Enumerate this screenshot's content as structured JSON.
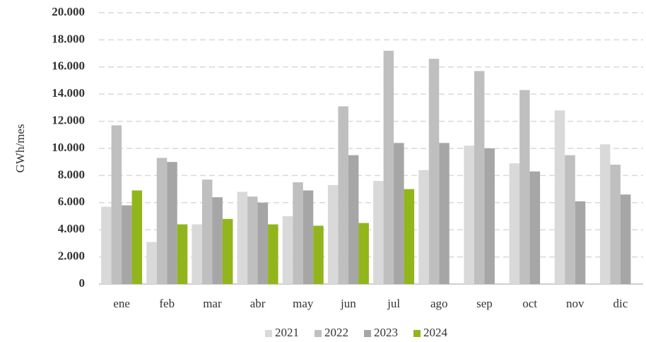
{
  "chart_data": {
    "type": "bar",
    "y_label": "GWh/mes",
    "categories": [
      "ene",
      "feb",
      "mar",
      "abr",
      "may",
      "jun",
      "jul",
      "ago",
      "sep",
      "oct",
      "nov",
      "dic"
    ],
    "series": [
      {
        "name": "2021",
        "color": "#d9d9d9",
        "values": [
          5700,
          3100,
          4400,
          6800,
          5000,
          7300,
          7600,
          8400,
          10200,
          8900,
          12800,
          10300
        ]
      },
      {
        "name": "2022",
        "color": "#bfbfbf",
        "values": [
          11700,
          9300,
          7700,
          6450,
          7500,
          13100,
          17200,
          16600,
          15700,
          14300,
          9500,
          8800
        ]
      },
      {
        "name": "2023",
        "color": "#a6a6a6",
        "values": [
          5800,
          9000,
          6400,
          6000,
          6900,
          9500,
          10400,
          10400,
          10000,
          8300,
          6100,
          6600
        ]
      },
      {
        "name": "2024",
        "color": "#92b51b",
        "values": [
          6900,
          4400,
          4800,
          4400,
          4300,
          4500,
          7000,
          null,
          null,
          null,
          null,
          null
        ]
      }
    ],
    "ylim": [
      0,
      20000
    ],
    "yticks": [
      0,
      {
        "value": 2000,
        "label": "2.000"
      },
      {
        "value": 4000,
        "label": "4.000"
      },
      {
        "value": 6000,
        "label": "6.000"
      },
      {
        "value": 8000,
        "label": "8.000"
      },
      {
        "value": 10000,
        "label": "10.000"
      },
      {
        "value": 12000,
        "label": "12.000"
      },
      {
        "value": 14000,
        "label": "14.000"
      },
      {
        "value": 16000,
        "label": "16.000"
      },
      {
        "value": 18000,
        "label": "18.000"
      },
      {
        "value": 20000,
        "label": "20.000"
      }
    ],
    "grid": true,
    "legend": "bottom"
  }
}
